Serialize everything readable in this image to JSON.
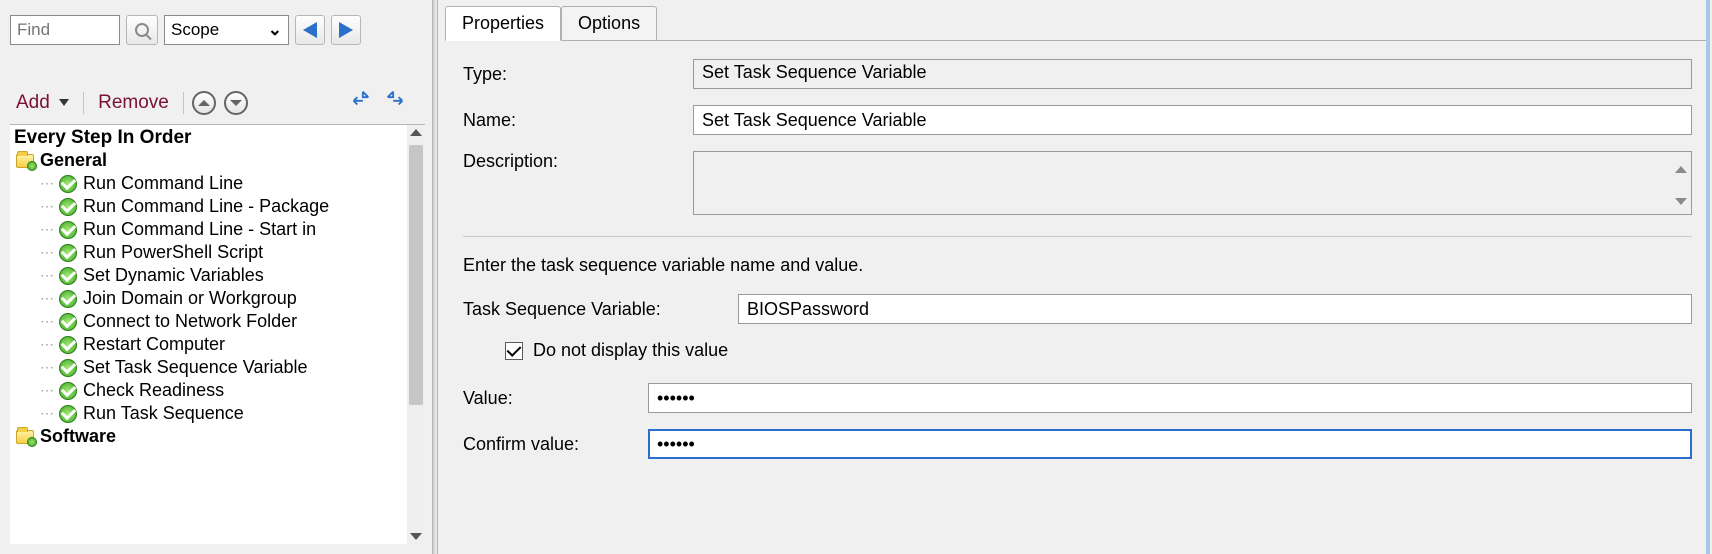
{
  "toolbar": {
    "find_placeholder": "Find",
    "scope_label": "Scope"
  },
  "actions": {
    "add_label": "Add",
    "remove_label": "Remove"
  },
  "tree": {
    "header": "Every Step In Order",
    "folders": [
      {
        "name": "General",
        "items": [
          "Run Command Line",
          "Run Command Line - Package",
          "Run Command Line - Start in",
          "Run PowerShell Script",
          "Set Dynamic Variables",
          "Join Domain or Workgroup",
          "Connect to Network Folder",
          "Restart Computer",
          "Set Task Sequence Variable",
          "Check Readiness",
          "Run Task Sequence"
        ]
      },
      {
        "name": "Software",
        "items": []
      }
    ]
  },
  "tabs": {
    "properties": "Properties",
    "options": "Options",
    "active": "properties"
  },
  "form": {
    "type_label": "Type:",
    "type_value": "Set Task Sequence Variable",
    "name_label": "Name:",
    "name_value": "Set Task Sequence Variable",
    "desc_label": "Description:",
    "desc_value": "",
    "hint": "Enter the task sequence variable name and value.",
    "var_label": "Task Sequence Variable:",
    "var_value": "BIOSPassword",
    "secret_checkbox_label": "Do not display this value",
    "secret_checked": true,
    "value_label": "Value:",
    "value_value": "••••••",
    "confirm_label": "Confirm value:",
    "confirm_value": "••••••"
  },
  "colors": {
    "bg": "#f0f0f0",
    "input_border": "#9a9a9a",
    "accent_blue": "#2a6fc9",
    "link_maroon": "#7a1131",
    "ok_green": "#3aa821",
    "folder_yellow": "#f5cf45"
  }
}
